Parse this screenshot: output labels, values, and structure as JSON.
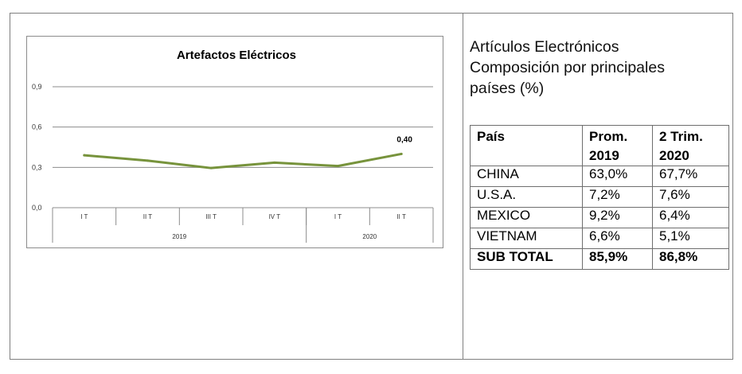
{
  "chart_data": {
    "type": "line",
    "title": "Artefactos Eléctricos",
    "categories": [
      "I T",
      "II T",
      "III T",
      "IV T",
      "I T",
      "II T"
    ],
    "years": [
      {
        "label": "2019",
        "count": 4
      },
      {
        "label": "2020",
        "count": 2
      }
    ],
    "series": [
      {
        "values": [
          0.39,
          0.35,
          0.295,
          0.335,
          0.31,
          0.4
        ],
        "color": "#77933c"
      }
    ],
    "yticks": [
      "0,0",
      "0,3",
      "0,6",
      "0,9"
    ],
    "ytick_values": [
      0,
      0.3,
      0.6,
      0.9
    ],
    "ylim": [
      0,
      0.9
    ],
    "data_labels": [
      {
        "index": 5,
        "text": "0,40"
      }
    ],
    "grid": true,
    "legend": "none"
  },
  "heading": {
    "lines": [
      "Artículos Electrónicos",
      "Composición por principales",
      "países (%)"
    ]
  },
  "table": {
    "headers": [
      [
        "País"
      ],
      [
        "Prom.",
        "2019"
      ],
      [
        "2 Trim.",
        "2020"
      ]
    ],
    "rows": [
      {
        "country": "CHINA",
        "prom_2019": "63,0%",
        "trim_2020": "67,7%"
      },
      {
        "country": "U.S.A.",
        "prom_2019": "7,2%",
        "trim_2020": "7,6%"
      },
      {
        "country": "MEXICO",
        "prom_2019": "9,2%",
        "trim_2020": "6,4%"
      },
      {
        "country": "VIETNAM",
        "prom_2019": "6,6%",
        "trim_2020": "5,1%"
      }
    ],
    "total": {
      "country": "SUB TOTAL",
      "prom_2019": "85,9%",
      "trim_2020": "86,8%"
    }
  }
}
